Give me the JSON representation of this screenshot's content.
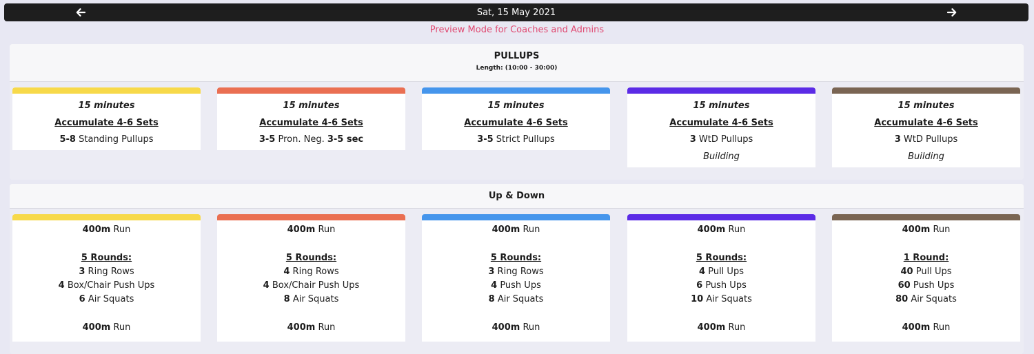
{
  "nav": {
    "date": "Sat, 15 May 2021"
  },
  "preview": "Preview Mode for Coaches and Admins",
  "section1": {
    "title": "PULLUPS",
    "length": "Length: (10:00 - 30:00)",
    "cards": [
      {
        "color": "#f7d94a",
        "duration": "15 minutes",
        "scheme": "Accumulate 4-6 Sets",
        "reps": "5-8",
        "movement": "Standing Pullups"
      },
      {
        "color": "#ea6f52",
        "duration": "15 minutes",
        "scheme": "Accumulate 4-6 Sets",
        "reps": "3-5",
        "movement": "Pron. Neg.",
        "hold": "3-5 sec"
      },
      {
        "color": "#4595ec",
        "duration": "15 minutes",
        "scheme": "Accumulate 4-6 Sets",
        "reps": "3-5",
        "movement": "Strict Pullups"
      },
      {
        "color": "#5b2be6",
        "duration": "15 minutes",
        "scheme": "Accumulate 4-6 Sets",
        "reps": "3",
        "movement": "WtD Pullups",
        "note": "Building"
      },
      {
        "color": "#7a6553",
        "duration": "15 minutes",
        "scheme": "Accumulate 4-6 Sets",
        "reps": "3",
        "movement": "WtD Pullups",
        "note": "Building"
      }
    ]
  },
  "section2": {
    "title": "Up & Down",
    "cards": [
      {
        "color": "#f7d94a",
        "run_dist": "400m",
        "run": "Run",
        "rounds": "5 Rounds:",
        "items": [
          {
            "n": "3",
            "m": "Ring Rows"
          },
          {
            "n": "4",
            "m": "Box/Chair Push Ups"
          },
          {
            "n": "6",
            "m": "Air Squats"
          }
        ]
      },
      {
        "color": "#ea6f52",
        "run_dist": "400m",
        "run": "Run",
        "rounds": "5 Rounds:",
        "items": [
          {
            "n": "4",
            "m": "Ring Rows"
          },
          {
            "n": "4",
            "m": "Box/Chair Push Ups"
          },
          {
            "n": "8",
            "m": "Air Squats"
          }
        ]
      },
      {
        "color": "#4595ec",
        "run_dist": "400m",
        "run": "Run",
        "rounds": "5 Rounds:",
        "items": [
          {
            "n": "3",
            "m": "Ring Rows"
          },
          {
            "n": "4",
            "m": "Push Ups"
          },
          {
            "n": "8",
            "m": "Air Squats"
          }
        ]
      },
      {
        "color": "#5b2be6",
        "run_dist": "400m",
        "run": "Run",
        "rounds": "5 Rounds:",
        "items": [
          {
            "n": "4",
            "m": "Pull Ups"
          },
          {
            "n": "6",
            "m": "Push Ups"
          },
          {
            "n": "10",
            "m": "Air Squats"
          }
        ]
      },
      {
        "color": "#7a6553",
        "run_dist": "400m",
        "run": "Run",
        "rounds": "1 Round:",
        "items": [
          {
            "n": "40",
            "m": "Pull Ups"
          },
          {
            "n": "60",
            "m": "Push Ups"
          },
          {
            "n": "80",
            "m": "Air Squats"
          }
        ]
      }
    ]
  },
  "icons": {
    "prev": "arrow-left-icon",
    "next": "arrow-right-icon"
  }
}
